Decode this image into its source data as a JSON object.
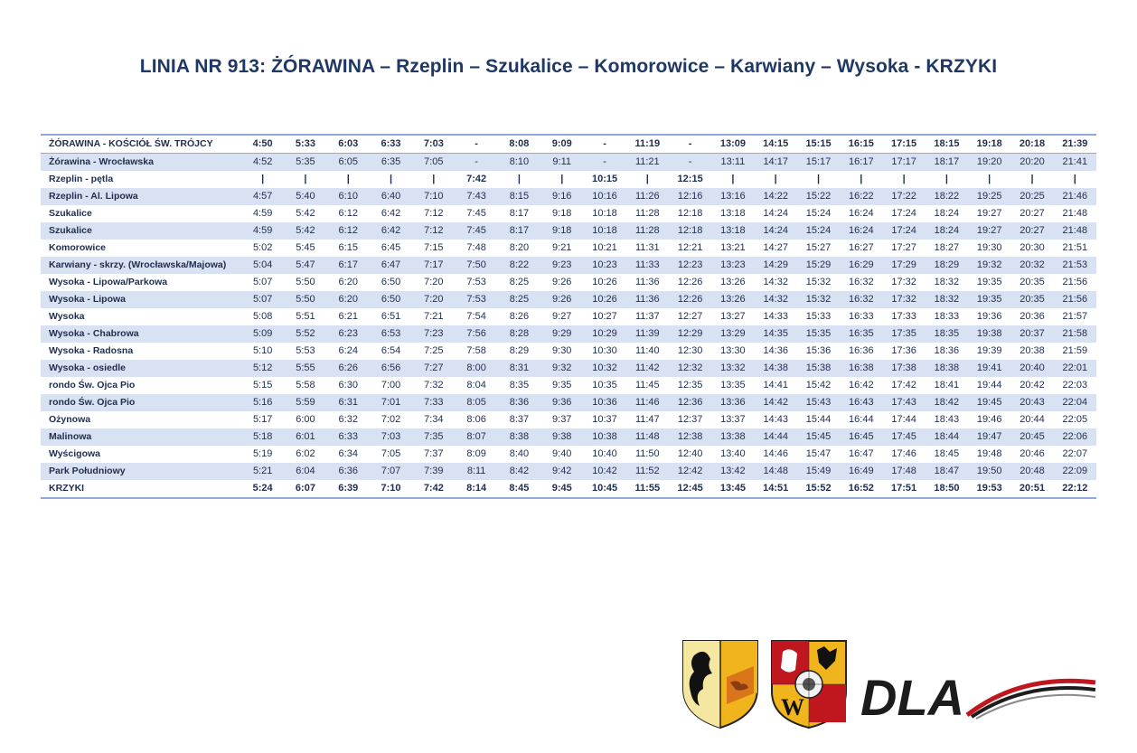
{
  "title": "LINIA NR 913: ŻÓRAWINA – Rzeplin – Szukalice – Komorowice – Karwiany – Wysoka - KRZYKI",
  "rows": [
    {
      "stop": "ŻÓRAWINA - KOŚCIÓŁ ŚW. TRÓJCY",
      "bold": true,
      "times": [
        "4:50",
        "5:33",
        "6:03",
        "6:33",
        "7:03",
        "-",
        "8:08",
        "9:09",
        "-",
        "11:19",
        "-",
        "13:09",
        "14:15",
        "15:15",
        "16:15",
        "17:15",
        "18:15",
        "19:18",
        "20:18",
        "21:39"
      ]
    },
    {
      "stop": "Żórawina - Wrocławska",
      "bold": false,
      "times": [
        "4:52",
        "5:35",
        "6:05",
        "6:35",
        "7:05",
        "-",
        "8:10",
        "9:11",
        "-",
        "11:21",
        "-",
        "13:11",
        "14:17",
        "15:17",
        "16:17",
        "17:17",
        "18:17",
        "19:20",
        "20:20",
        "21:41"
      ]
    },
    {
      "stop": "Rzeplin - pętla",
      "bold": true,
      "times": [
        "|",
        "|",
        "|",
        "|",
        "|",
        "7:42",
        "|",
        "|",
        "10:15",
        "|",
        "12:15",
        "|",
        "|",
        "|",
        "|",
        "|",
        "|",
        "|",
        "|",
        "|"
      ]
    },
    {
      "stop": "Rzeplin - Al. Lipowa",
      "bold": false,
      "times": [
        "4:57",
        "5:40",
        "6:10",
        "6:40",
        "7:10",
        "7:43",
        "8:15",
        "9:16",
        "10:16",
        "11:26",
        "12:16",
        "13:16",
        "14:22",
        "15:22",
        "16:22",
        "17:22",
        "18:22",
        "19:25",
        "20:25",
        "21:46"
      ]
    },
    {
      "stop": "Szukalice",
      "bold": false,
      "times": [
        "4:59",
        "5:42",
        "6:12",
        "6:42",
        "7:12",
        "7:45",
        "8:17",
        "9:18",
        "10:18",
        "11:28",
        "12:18",
        "13:18",
        "14:24",
        "15:24",
        "16:24",
        "17:24",
        "18:24",
        "19:27",
        "20:27",
        "21:48"
      ]
    },
    {
      "stop": "Szukalice",
      "bold": false,
      "times": [
        "4:59",
        "5:42",
        "6:12",
        "6:42",
        "7:12",
        "7:45",
        "8:17",
        "9:18",
        "10:18",
        "11:28",
        "12:18",
        "13:18",
        "14:24",
        "15:24",
        "16:24",
        "17:24",
        "18:24",
        "19:27",
        "20:27",
        "21:48"
      ]
    },
    {
      "stop": "Komorowice",
      "bold": false,
      "times": [
        "5:02",
        "5:45",
        "6:15",
        "6:45",
        "7:15",
        "7:48",
        "8:20",
        "9:21",
        "10:21",
        "11:31",
        "12:21",
        "13:21",
        "14:27",
        "15:27",
        "16:27",
        "17:27",
        "18:27",
        "19:30",
        "20:30",
        "21:51"
      ]
    },
    {
      "stop": "Karwiany - skrzy. (Wrocławska/Majowa)",
      "bold": false,
      "times": [
        "5:04",
        "5:47",
        "6:17",
        "6:47",
        "7:17",
        "7:50",
        "8:22",
        "9:23",
        "10:23",
        "11:33",
        "12:23",
        "13:23",
        "14:29",
        "15:29",
        "16:29",
        "17:29",
        "18:29",
        "19:32",
        "20:32",
        "21:53"
      ]
    },
    {
      "stop": "Wysoka - Lipowa/Parkowa",
      "bold": false,
      "times": [
        "5:07",
        "5:50",
        "6:20",
        "6:50",
        "7:20",
        "7:53",
        "8:25",
        "9:26",
        "10:26",
        "11:36",
        "12:26",
        "13:26",
        "14:32",
        "15:32",
        "16:32",
        "17:32",
        "18:32",
        "19:35",
        "20:35",
        "21:56"
      ]
    },
    {
      "stop": "Wysoka - Lipowa",
      "bold": false,
      "times": [
        "5:07",
        "5:50",
        "6:20",
        "6:50",
        "7:20",
        "7:53",
        "8:25",
        "9:26",
        "10:26",
        "11:36",
        "12:26",
        "13:26",
        "14:32",
        "15:32",
        "16:32",
        "17:32",
        "18:32",
        "19:35",
        "20:35",
        "21:56"
      ]
    },
    {
      "stop": "Wysoka",
      "bold": false,
      "times": [
        "5:08",
        "5:51",
        "6:21",
        "6:51",
        "7:21",
        "7:54",
        "8:26",
        "9:27",
        "10:27",
        "11:37",
        "12:27",
        "13:27",
        "14:33",
        "15:33",
        "16:33",
        "17:33",
        "18:33",
        "19:36",
        "20:36",
        "21:57"
      ]
    },
    {
      "stop": "Wysoka - Chabrowa",
      "bold": false,
      "times": [
        "5:09",
        "5:52",
        "6:23",
        "6:53",
        "7:23",
        "7:56",
        "8:28",
        "9:29",
        "10:29",
        "11:39",
        "12:29",
        "13:29",
        "14:35",
        "15:35",
        "16:35",
        "17:35",
        "18:35",
        "19:38",
        "20:37",
        "21:58"
      ]
    },
    {
      "stop": "Wysoka - Radosna",
      "bold": false,
      "times": [
        "5:10",
        "5:53",
        "6:24",
        "6:54",
        "7:25",
        "7:58",
        "8:29",
        "9:30",
        "10:30",
        "11:40",
        "12:30",
        "13:30",
        "14:36",
        "15:36",
        "16:36",
        "17:36",
        "18:36",
        "19:39",
        "20:38",
        "21:59"
      ]
    },
    {
      "stop": "Wysoka - osiedle",
      "bold": false,
      "times": [
        "5:12",
        "5:55",
        "6:26",
        "6:56",
        "7:27",
        "8:00",
        "8:31",
        "9:32",
        "10:32",
        "11:42",
        "12:32",
        "13:32",
        "14:38",
        "15:38",
        "16:38",
        "17:38",
        "18:38",
        "19:41",
        "20:40",
        "22:01"
      ]
    },
    {
      "stop": "rondo Św. Ojca Pio",
      "bold": false,
      "times": [
        "5:15",
        "5:58",
        "6:30",
        "7:00",
        "7:32",
        "8:04",
        "8:35",
        "9:35",
        "10:35",
        "11:45",
        "12:35",
        "13:35",
        "14:41",
        "15:42",
        "16:42",
        "17:42",
        "18:41",
        "19:44",
        "20:42",
        "22:03"
      ]
    },
    {
      "stop": "rondo Św. Ojca Pio",
      "bold": false,
      "times": [
        "5:16",
        "5:59",
        "6:31",
        "7:01",
        "7:33",
        "8:05",
        "8:36",
        "9:36",
        "10:36",
        "11:46",
        "12:36",
        "13:36",
        "14:42",
        "15:43",
        "16:43",
        "17:43",
        "18:42",
        "19:45",
        "20:43",
        "22:04"
      ]
    },
    {
      "stop": "Ożynowa",
      "bold": false,
      "times": [
        "5:17",
        "6:00",
        "6:32",
        "7:02",
        "7:34",
        "8:06",
        "8:37",
        "9:37",
        "10:37",
        "11:47",
        "12:37",
        "13:37",
        "14:43",
        "15:44",
        "16:44",
        "17:44",
        "18:43",
        "19:46",
        "20:44",
        "22:05"
      ]
    },
    {
      "stop": "Malinowa",
      "bold": false,
      "times": [
        "5:18",
        "6:01",
        "6:33",
        "7:03",
        "7:35",
        "8:07",
        "8:38",
        "9:38",
        "10:38",
        "11:48",
        "12:38",
        "13:38",
        "14:44",
        "15:45",
        "16:45",
        "17:45",
        "18:44",
        "19:47",
        "20:45",
        "22:06"
      ]
    },
    {
      "stop": "Wyścigowa",
      "bold": false,
      "times": [
        "5:19",
        "6:02",
        "6:34",
        "7:05",
        "7:37",
        "8:09",
        "8:40",
        "9:40",
        "10:40",
        "11:50",
        "12:40",
        "13:40",
        "14:46",
        "15:47",
        "16:47",
        "17:46",
        "18:45",
        "19:48",
        "20:46",
        "22:07"
      ]
    },
    {
      "stop": "Park Południowy",
      "bold": false,
      "times": [
        "5:21",
        "6:04",
        "6:36",
        "7:07",
        "7:39",
        "8:11",
        "8:42",
        "9:42",
        "10:42",
        "11:52",
        "12:42",
        "13:42",
        "14:48",
        "15:49",
        "16:49",
        "17:48",
        "18:47",
        "19:50",
        "20:48",
        "22:09"
      ]
    },
    {
      "stop": "KRZYKI",
      "bold": true,
      "times": [
        "5:24",
        "6:07",
        "6:39",
        "7:10",
        "7:42",
        "8:14",
        "8:45",
        "9:45",
        "10:45",
        "11:55",
        "12:45",
        "13:45",
        "14:51",
        "15:52",
        "16:52",
        "17:51",
        "18:50",
        "19:53",
        "20:51",
        "22:12"
      ]
    }
  ],
  "logos": {
    "logo_text": "DLA",
    "icons": [
      "lower-silesia-coat-of-arms-icon",
      "wroclaw-coat-of-arms-icon",
      "dla-logo-icon"
    ],
    "colors": {
      "navy": "#1f3864",
      "stripe": "#d9e2f3",
      "border": "#8eaadb",
      "red": "#c0161e",
      "gold": "#f0b41c"
    }
  }
}
